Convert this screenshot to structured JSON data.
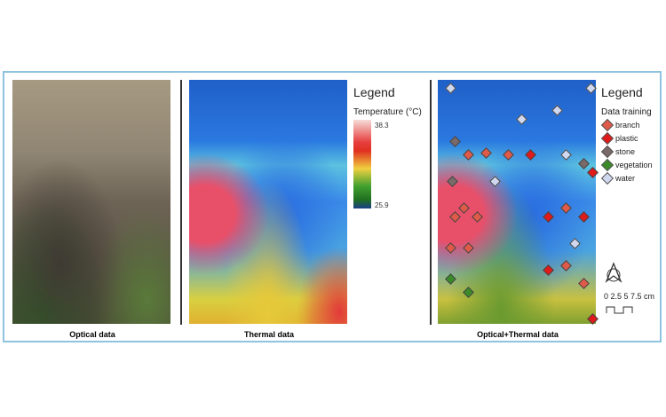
{
  "panels": [
    {
      "caption": "Optical data"
    },
    {
      "caption": "Thermal data"
    },
    {
      "caption": "Optical+Thermal data"
    }
  ],
  "thermal_legend": {
    "title": "Legend",
    "subtitle": "Temperature (°C)",
    "max": "38.3",
    "min": "25.9"
  },
  "class_legend": {
    "title": "Legend",
    "subtitle": "Data training",
    "items": [
      {
        "label": "branch",
        "color": "#e05a4a"
      },
      {
        "label": "plastic",
        "color": "#e01a1a"
      },
      {
        "label": "stone",
        "color": "#7a6a6a"
      },
      {
        "label": "vegetation",
        "color": "#3a8a2a"
      },
      {
        "label": "water",
        "color": "#d0d8f0"
      }
    ]
  },
  "scale_bar": {
    "label": "0 2.5 5 7.5 cm",
    "north_arrow": "north-arrow-icon"
  }
}
